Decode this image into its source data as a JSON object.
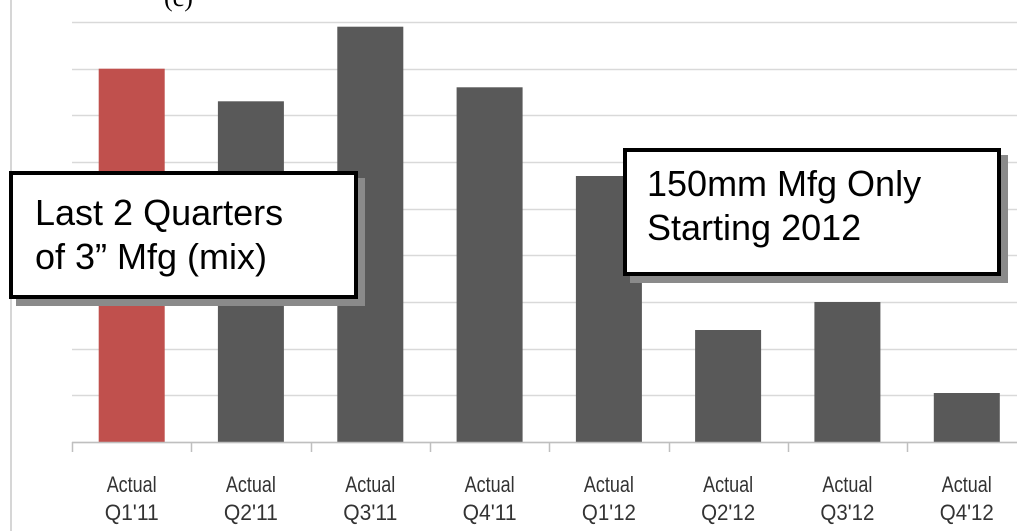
{
  "chart_data": {
    "type": "bar",
    "categories": [
      [
        "Actual",
        "Q1'11"
      ],
      [
        "Actual",
        "Q2'11"
      ],
      [
        "Actual",
        "Q3'11"
      ],
      [
        "Actual",
        "Q4'11"
      ],
      [
        "Actual",
        "Q1'12"
      ],
      [
        "Actual",
        "Q2'12"
      ],
      [
        "Actual",
        "Q3'12"
      ],
      [
        "Actual",
        "Q4'12"
      ]
    ],
    "values": [
      8.0,
      7.3,
      8.9,
      7.6,
      5.7,
      2.4,
      3.0,
      1.05
    ],
    "ylim": [
      0,
      9
    ],
    "grid": true,
    "bar_colors": [
      "#c0504d",
      "#595959",
      "#595959",
      "#595959",
      "#595959",
      "#595959",
      "#595959",
      "#595959"
    ],
    "annotations": [
      {
        "lines": [
          "Last 2 Quarters",
          "of 3” Mfg (mix)"
        ]
      },
      {
        "lines": [
          "150mm Mfg Only",
          "Starting 2012"
        ]
      }
    ],
    "title_fragment": "(c)"
  }
}
